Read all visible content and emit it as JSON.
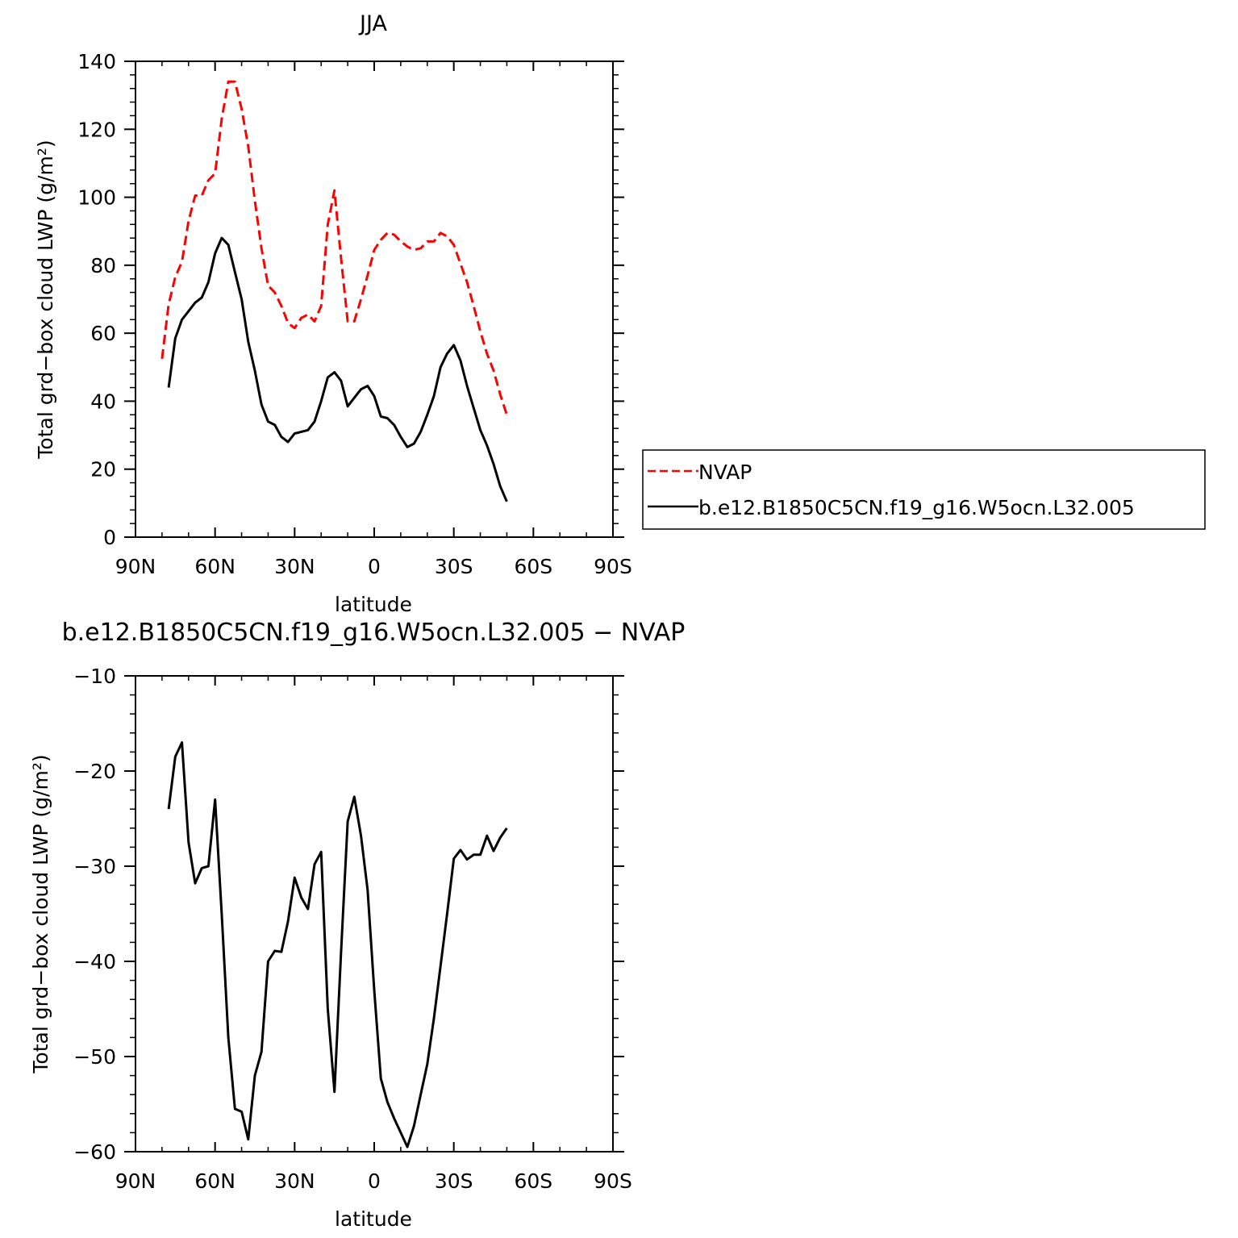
{
  "chart_data": [
    {
      "type": "line",
      "title": "JJA",
      "xlabel": "latitude",
      "ylabel": "Total grd−box cloud LWP (g/m²)",
      "xlim": [
        90,
        -90
      ],
      "ylim": [
        0,
        140
      ],
      "xticks": [
        {
          "value": 90,
          "label": "90N"
        },
        {
          "value": 60,
          "label": "60N"
        },
        {
          "value": 30,
          "label": "30N"
        },
        {
          "value": 0,
          "label": "0"
        },
        {
          "value": -30,
          "label": "30S"
        },
        {
          "value": -60,
          "label": "60S"
        },
        {
          "value": -90,
          "label": "90S"
        }
      ],
      "yticks": [
        0,
        20,
        40,
        60,
        80,
        100,
        120,
        140
      ],
      "legend": {
        "placement": "right"
      },
      "series": [
        {
          "name": "NVAP",
          "color": "#ff0000",
          "dash": "dashed",
          "points": [
            [
              80,
              52.5
            ],
            [
              77.5,
              68.5
            ],
            [
              75,
              76.5
            ],
            [
              72.5,
              81
            ],
            [
              70,
              93
            ],
            [
              67.5,
              100.5
            ],
            [
              65,
              100.5
            ],
            [
              62.5,
              105
            ],
            [
              60,
              107
            ],
            [
              57.5,
              123
            ],
            [
              55,
              134
            ],
            [
              52.5,
              134
            ],
            [
              50,
              126
            ],
            [
              47.5,
              115
            ],
            [
              45,
              99
            ],
            [
              42.5,
              85
            ],
            [
              40,
              74
            ],
            [
              37.5,
              72
            ],
            [
              35,
              68
            ],
            [
              32.5,
              63
            ],
            [
              30,
              61.5
            ],
            [
              27.5,
              64.5
            ],
            [
              25,
              65.5
            ],
            [
              22.5,
              63.5
            ],
            [
              20,
              68
            ],
            [
              17.5,
              92
            ],
            [
              15,
              102
            ],
            [
              12.5,
              82
            ],
            [
              10,
              63.5
            ],
            [
              7.5,
              63.5
            ],
            [
              5,
              70
            ],
            [
              2.5,
              77
            ],
            [
              0,
              84.5
            ],
            [
              -2.5,
              87.5
            ],
            [
              -5,
              89.5
            ],
            [
              -7.5,
              89
            ],
            [
              -10,
              87
            ],
            [
              -12.5,
              85.5
            ],
            [
              -15,
              84.5
            ],
            [
              -17.5,
              85
            ],
            [
              -20,
              87
            ],
            [
              -22.5,
              87
            ],
            [
              -25,
              89.5
            ],
            [
              -27.5,
              88.5
            ],
            [
              -30,
              86
            ],
            [
              -32.5,
              80.5
            ],
            [
              -35,
              75
            ],
            [
              -37.5,
              68
            ],
            [
              -40,
              60.5
            ],
            [
              -42.5,
              54
            ],
            [
              -45,
              49
            ],
            [
              -47.5,
              42
            ],
            [
              -50,
              36
            ]
          ]
        },
        {
          "name": "b.e12.B1850C5CN.f19_g16.W5ocn.L32.005",
          "color": "#000000",
          "dash": "solid",
          "points": [
            [
              77.5,
              44
            ],
            [
              75,
              58.5
            ],
            [
              72.5,
              64
            ],
            [
              70,
              66.5
            ],
            [
              67.5,
              69
            ],
            [
              65,
              70.5
            ],
            [
              62.5,
              75
            ],
            [
              60,
              83.5
            ],
            [
              57.5,
              88
            ],
            [
              55,
              86
            ],
            [
              52.5,
              78
            ],
            [
              50,
              70
            ],
            [
              47.5,
              57.5
            ],
            [
              45,
              49
            ],
            [
              42.5,
              39
            ],
            [
              40,
              34
            ],
            [
              37.5,
              33
            ],
            [
              35,
              29.5
            ],
            [
              32.5,
              28
            ],
            [
              30,
              30.5
            ],
            [
              27.5,
              31
            ],
            [
              25,
              31.5
            ],
            [
              22.5,
              34
            ],
            [
              20,
              40
            ],
            [
              17.5,
              47
            ],
            [
              15,
              48.5
            ],
            [
              12.5,
              46
            ],
            [
              10,
              38.5
            ],
            [
              7.5,
              41
            ],
            [
              5,
              43.5
            ],
            [
              2.5,
              44.5
            ],
            [
              0,
              41.5
            ],
            [
              -2.5,
              35.5
            ],
            [
              -5,
              35
            ],
            [
              -7.5,
              33
            ],
            [
              -10,
              29.5
            ],
            [
              -12.5,
              26.5
            ],
            [
              -15,
              27.5
            ],
            [
              -17.5,
              31
            ],
            [
              -20,
              36
            ],
            [
              -22.5,
              41.5
            ],
            [
              -25,
              50
            ],
            [
              -27.5,
              54
            ],
            [
              -30,
              56.5
            ],
            [
              -32.5,
              52
            ],
            [
              -35,
              44.5
            ],
            [
              -37.5,
              38
            ],
            [
              -40,
              31.5
            ],
            [
              -42.5,
              27
            ],
            [
              -45,
              21.5
            ],
            [
              -47.5,
              15
            ],
            [
              -50,
              10.5
            ]
          ]
        }
      ]
    },
    {
      "type": "line",
      "title": "b.e12.B1850C5CN.f19_g16.W5ocn.L32.005 − NVAP",
      "xlabel": "latitude",
      "ylabel": "Total grd−box cloud LWP (g/m²)",
      "xlim": [
        90,
        -90
      ],
      "ylim": [
        -60,
        -10
      ],
      "xticks": [
        {
          "value": 90,
          "label": "90N"
        },
        {
          "value": 60,
          "label": "60N"
        },
        {
          "value": 30,
          "label": "30N"
        },
        {
          "value": 0,
          "label": "0"
        },
        {
          "value": -30,
          "label": "30S"
        },
        {
          "value": -60,
          "label": "60S"
        },
        {
          "value": -90,
          "label": "90S"
        }
      ],
      "yticks": [
        -60,
        -50,
        -40,
        -30,
        -20,
        -10
      ],
      "series": [
        {
          "color": "#000000",
          "dash": "solid",
          "points": [
            [
              77.5,
              -24
            ],
            [
              75,
              -18.5
            ],
            [
              72.5,
              -17
            ],
            [
              70,
              -27.5
            ],
            [
              67.5,
              -31.8
            ],
            [
              65,
              -30.2
            ],
            [
              62.5,
              -30
            ],
            [
              60,
              -23
            ],
            [
              57.5,
              -35
            ],
            [
              55,
              -48
            ],
            [
              52.5,
              -55.5
            ],
            [
              50,
              -55.8
            ],
            [
              47.5,
              -58.7
            ],
            [
              45,
              -52
            ],
            [
              42.5,
              -49.5
            ],
            [
              40,
              -40
            ],
            [
              37.5,
              -38.9
            ],
            [
              35,
              -39
            ],
            [
              32.5,
              -35.8
            ],
            [
              30,
              -31.2
            ],
            [
              27.5,
              -33.3
            ],
            [
              25,
              -34.5
            ],
            [
              22.5,
              -29.8
            ],
            [
              20,
              -28.5
            ],
            [
              17.5,
              -45
            ],
            [
              15,
              -53.7
            ],
            [
              12.5,
              -39
            ],
            [
              10,
              -25.3
            ],
            [
              7.5,
              -22.7
            ],
            [
              5,
              -26.8
            ],
            [
              2.5,
              -32.5
            ],
            [
              0,
              -43
            ],
            [
              -2.5,
              -52.3
            ],
            [
              -5,
              -54.8
            ],
            [
              -7.5,
              -56.5
            ],
            [
              -10,
              -58
            ],
            [
              -12.5,
              -59.5
            ],
            [
              -15,
              -57.3
            ],
            [
              -17.5,
              -54
            ],
            [
              -20,
              -50.8
            ],
            [
              -22.5,
              -46
            ],
            [
              -25,
              -40.5
            ],
            [
              -27.5,
              -35
            ],
            [
              -30,
              -29.2
            ],
            [
              -32.5,
              -28.3
            ],
            [
              -35,
              -29.3
            ],
            [
              -37.5,
              -28.8
            ],
            [
              -40,
              -28.8
            ],
            [
              -42.5,
              -26.8
            ],
            [
              -45,
              -28.4
            ],
            [
              -47.5,
              -27
            ],
            [
              -50,
              -26
            ]
          ]
        }
      ]
    }
  ]
}
